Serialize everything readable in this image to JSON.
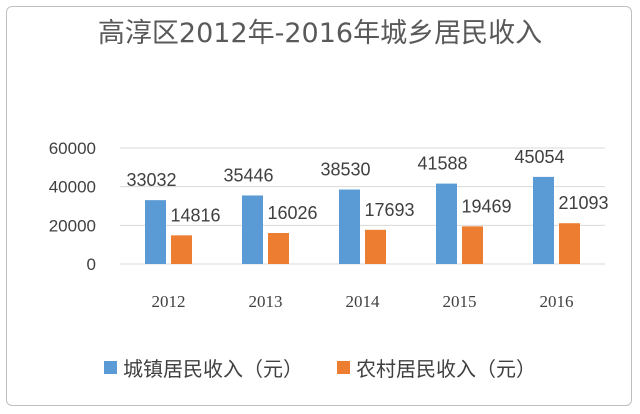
{
  "chart_data": {
    "type": "bar",
    "title": "高淳区2012年-2016年城乡居民收入",
    "categories": [
      "2012",
      "2013",
      "2014",
      "2015",
      "2016"
    ],
    "series": [
      {
        "name": "城镇居民收入（元）",
        "color": "#5b9bd5",
        "values": [
          33032,
          35446,
          38530,
          41588,
          45054
        ]
      },
      {
        "name": "农村居民收入（元）",
        "color": "#ed7d31",
        "values": [
          14816,
          16026,
          17693,
          19469,
          21093
        ]
      }
    ],
    "ylim": [
      0,
      60000
    ],
    "yticks": [
      0,
      20000,
      40000,
      60000
    ],
    "grid": true,
    "legend": "bottom",
    "xlabel": "",
    "ylabel": ""
  }
}
